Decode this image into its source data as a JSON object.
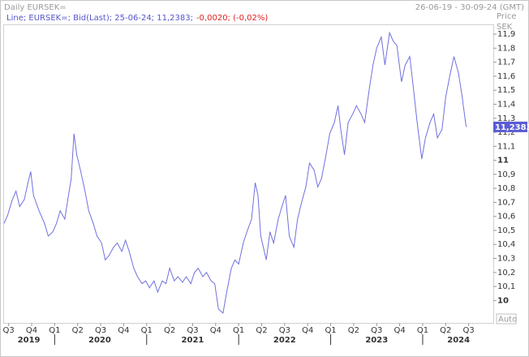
{
  "chart_data": {
    "type": "line",
    "title": "Daily EURSEK=",
    "date_range": "26-06-19 - 30-09-24 (GMT)",
    "legend_text": "Line; EURSEK=; Bid(Last); 25-06-24; 11,2383;",
    "change_label": "-0,0020; (-0,02%)",
    "y_axis_title": "Price",
    "y_axis_unit": "SEK",
    "scale_mode": "Auto",
    "last_value": {
      "value": 11.2383,
      "label": "11,2383"
    },
    "xlim": [
      2019.45,
      2024.75
    ],
    "ylim": [
      9.84,
      11.97
    ],
    "xticks": [
      {
        "value": 2019.5,
        "label": "Q3"
      },
      {
        "value": 2019.75,
        "label": "Q4"
      },
      {
        "value": 2020.0,
        "label": "Q1"
      },
      {
        "value": 2020.25,
        "label": "Q2"
      },
      {
        "value": 2020.5,
        "label": "Q3"
      },
      {
        "value": 2020.75,
        "label": "Q4"
      },
      {
        "value": 2021.0,
        "label": "Q1"
      },
      {
        "value": 2021.25,
        "label": "Q2"
      },
      {
        "value": 2021.5,
        "label": "Q3"
      },
      {
        "value": 2021.75,
        "label": "Q4"
      },
      {
        "value": 2022.0,
        "label": "Q1"
      },
      {
        "value": 2022.25,
        "label": "Q2"
      },
      {
        "value": 2022.5,
        "label": "Q3"
      },
      {
        "value": 2022.75,
        "label": "Q4"
      },
      {
        "value": 2023.0,
        "label": "Q1"
      },
      {
        "value": 2023.25,
        "label": "Q2"
      },
      {
        "value": 2023.5,
        "label": "Q3"
      },
      {
        "value": 2023.75,
        "label": "Q4"
      },
      {
        "value": 2024.0,
        "label": "Q1"
      },
      {
        "value": 2024.25,
        "label": "Q2"
      },
      {
        "value": 2024.5,
        "label": "Q3"
      }
    ],
    "year_labels": [
      {
        "value": 2019.72,
        "label": "2019"
      },
      {
        "value": 2020.49,
        "label": "2020"
      },
      {
        "value": 2021.5,
        "label": "2021"
      },
      {
        "value": 2022.5,
        "label": "2022"
      },
      {
        "value": 2023.5,
        "label": "2023"
      },
      {
        "value": 2024.39,
        "label": "2024"
      }
    ],
    "yticks": [
      10,
      {
        "value": 10.1,
        "label": "10,1"
      },
      {
        "value": 10.2,
        "label": "10,2"
      },
      {
        "value": 10.3,
        "label": "10,3"
      },
      {
        "value": 10.4,
        "label": "10,4"
      },
      {
        "value": 10.5,
        "label": "10,5"
      },
      {
        "value": 10.6,
        "label": "10,6"
      },
      {
        "value": 10.7,
        "label": "10,7"
      },
      {
        "value": 10.8,
        "label": "10,8"
      },
      {
        "value": 10.9,
        "label": "10,9"
      },
      11,
      {
        "value": 11.1,
        "label": "11,1"
      },
      {
        "value": 11.2,
        "label": "11,2"
      },
      {
        "value": 11.3,
        "label": "11,3"
      },
      {
        "value": 11.4,
        "label": "11,4"
      },
      {
        "value": 11.5,
        "label": "11,5"
      },
      {
        "value": 11.6,
        "label": "11,6"
      },
      {
        "value": 11.7,
        "label": "11,7"
      },
      {
        "value": 11.8,
        "label": "11,8"
      },
      {
        "value": 11.9,
        "label": "11,9"
      }
    ],
    "x": [
      2019.45,
      2019.49,
      2019.54,
      2019.58,
      2019.62,
      2019.67,
      2019.71,
      2019.74,
      2019.77,
      2019.83,
      2019.89,
      2019.93,
      2019.98,
      2020.02,
      2020.06,
      2020.11,
      2020.15,
      2020.18,
      2020.21,
      2020.24,
      2020.28,
      2020.33,
      2020.37,
      2020.42,
      2020.46,
      2020.51,
      2020.55,
      2020.59,
      2020.64,
      2020.68,
      2020.73,
      2020.77,
      2020.81,
      2020.86,
      2020.9,
      2020.95,
      2020.99,
      2021.03,
      2021.08,
      2021.12,
      2021.17,
      2021.21,
      2021.25,
      2021.3,
      2021.34,
      2021.39,
      2021.43,
      2021.48,
      2021.52,
      2021.56,
      2021.61,
      2021.65,
      2021.7,
      2021.74,
      2021.78,
      2021.83,
      2021.87,
      2021.92,
      2021.96,
      2022.0,
      2022.05,
      2022.09,
      2022.14,
      2022.18,
      2022.21,
      2022.24,
      2022.3,
      2022.34,
      2022.38,
      2022.43,
      2022.47,
      2022.51,
      2022.55,
      2022.6,
      2022.64,
      2022.68,
      2022.73,
      2022.77,
      2022.82,
      2022.86,
      2022.9,
      2022.95,
      2022.99,
      2023.04,
      2023.08,
      2023.11,
      2023.15,
      2023.19,
      2023.24,
      2023.28,
      2023.33,
      2023.37,
      2023.42,
      2023.46,
      2023.5,
      2023.55,
      2023.59,
      2023.64,
      2023.68,
      2023.72,
      2023.77,
      2023.81,
      2023.86,
      2023.9,
      2023.94,
      2023.99,
      2024.03,
      2024.08,
      2024.12,
      2024.16,
      2024.21,
      2024.25,
      2024.3,
      2024.34,
      2024.39,
      2024.43,
      2024.47,
      2024.48
    ],
    "series": [
      {
        "name": "EURSEK=",
        "color": "#7070e0",
        "values": [
          10.55,
          10.61,
          10.72,
          10.78,
          10.67,
          10.72,
          10.84,
          10.92,
          10.75,
          10.64,
          10.55,
          10.46,
          10.49,
          10.55,
          10.64,
          10.58,
          10.75,
          10.87,
          11.19,
          11.04,
          10.93,
          10.78,
          10.64,
          10.55,
          10.46,
          10.41,
          10.29,
          10.32,
          10.38,
          10.41,
          10.35,
          10.43,
          10.35,
          10.23,
          10.17,
          10.12,
          10.14,
          10.09,
          10.14,
          10.06,
          10.14,
          10.12,
          10.23,
          10.14,
          10.17,
          10.13,
          10.17,
          10.12,
          10.2,
          10.23,
          10.17,
          10.2,
          10.14,
          10.12,
          9.94,
          9.91,
          10.06,
          10.23,
          10.29,
          10.26,
          10.41,
          10.49,
          10.58,
          10.84,
          10.75,
          10.46,
          10.29,
          10.49,
          10.41,
          10.58,
          10.67,
          10.75,
          10.46,
          10.38,
          10.58,
          10.69,
          10.81,
          10.98,
          10.93,
          10.81,
          10.87,
          11.04,
          11.19,
          11.27,
          11.39,
          11.22,
          11.04,
          11.27,
          11.33,
          11.39,
          11.33,
          11.27,
          11.51,
          11.68,
          11.8,
          11.88,
          11.68,
          11.91,
          11.85,
          11.82,
          11.56,
          11.68,
          11.74,
          11.51,
          11.27,
          11.01,
          11.16,
          11.27,
          11.33,
          11.16,
          11.22,
          11.45,
          11.62,
          11.74,
          11.62,
          11.45,
          11.25,
          11.2383
        ]
      }
    ]
  }
}
